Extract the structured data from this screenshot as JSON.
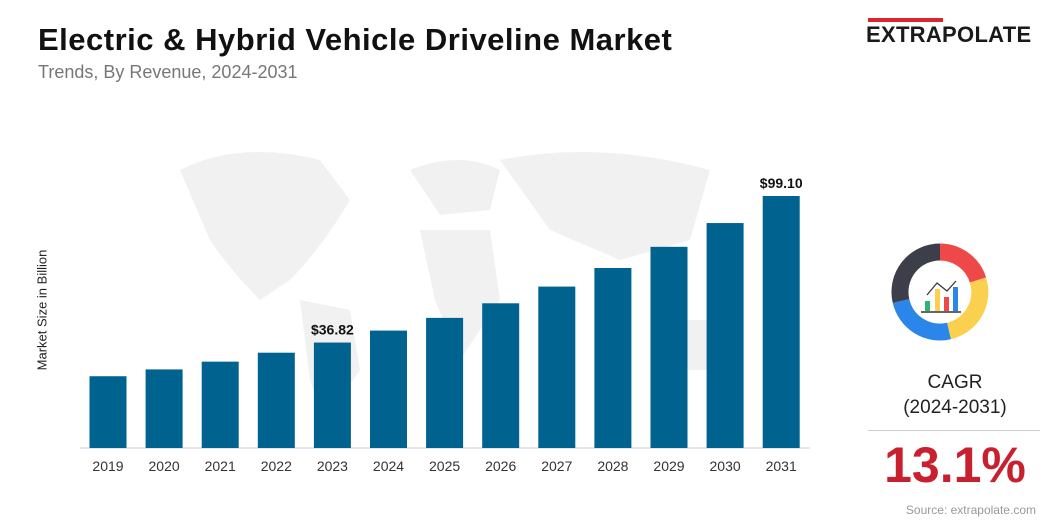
{
  "header": {
    "title": "Electric & Hybrid Vehicle Driveline Market",
    "subtitle": "Trends, By Revenue, 2024-2031"
  },
  "logo": {
    "text": "EXTRAPOLATE",
    "accent": "#d9252b"
  },
  "chart_data": {
    "type": "bar",
    "title": "",
    "xlabel": "",
    "ylabel": "Market Size in Billion",
    "categories": [
      "2019",
      "2020",
      "2021",
      "2022",
      "2023",
      "2024",
      "2025",
      "2026",
      "2027",
      "2028",
      "2029",
      "2030",
      "2031"
    ],
    "values": [
      22.5,
      25.4,
      28.7,
      32.5,
      36.82,
      41.9,
      47.3,
      53.5,
      60.6,
      68.5,
      77.5,
      87.6,
      99.1
    ],
    "data_labels": {
      "2023": "$36.82",
      "2031": "$99.10"
    },
    "bar_color": "#00628f",
    "grid": false
  },
  "cagr": {
    "label": "CAGR",
    "period": "(2024-2031)",
    "value": "13.1%",
    "color": "#c8202f",
    "icon": "donut-chart-analytics-icon"
  },
  "source": "Source: extrapolate.com"
}
